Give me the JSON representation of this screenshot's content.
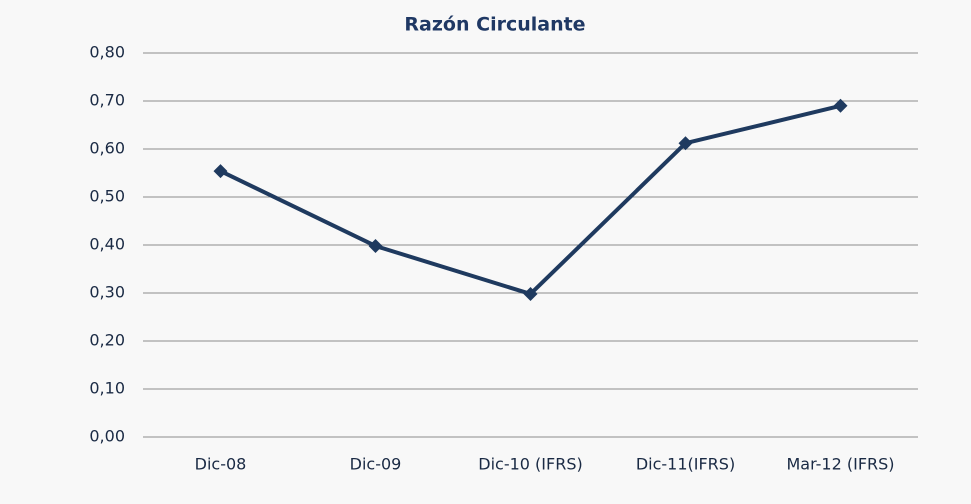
{
  "chart_data": {
    "type": "line",
    "title": "Razón Circulante",
    "categories": [
      "Dic-08",
      "Dic-09",
      "Dic-10 (IFRS)",
      "Dic-11(IFRS)",
      "Mar-12 (IFRS)"
    ],
    "values": [
      0.554,
      0.398,
      0.298,
      0.612,
      0.69
    ],
    "color": "#1f3a5f",
    "ylim": [
      0,
      0.8
    ],
    "yticks": [
      {
        "value": 0,
        "label": "0,00"
      },
      {
        "value": 0.1,
        "label": "0,10"
      },
      {
        "value": 0.2,
        "label": "0,20"
      },
      {
        "value": 0.3,
        "label": "0,30"
      },
      {
        "value": 0.4,
        "label": "0,40"
      },
      {
        "value": 0.5,
        "label": "0,50"
      },
      {
        "value": 0.6,
        "label": "0,60"
      },
      {
        "value": 0.7,
        "label": "0,70"
      },
      {
        "value": 0.8,
        "label": "0,80"
      }
    ],
    "grid": true
  }
}
